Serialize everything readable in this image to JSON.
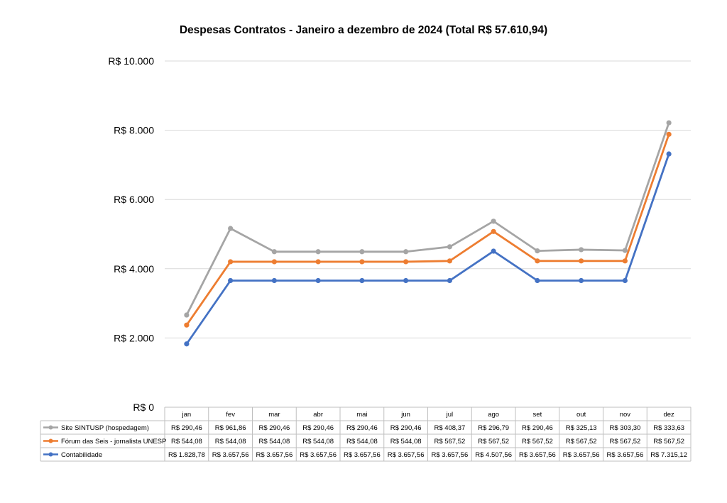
{
  "chart_data": {
    "type": "line",
    "title": "Despesas Contratos - Janeiro a dezembro de 2024 (Total R$ 57.610,94)",
    "stacked": true,
    "xlabel": "",
    "ylabel": "",
    "ylim": [
      0,
      10000
    ],
    "yticks": [
      0,
      2000,
      4000,
      6000,
      8000,
      10000
    ],
    "ytick_labels": [
      "R$ 0",
      "R$ 2.000",
      "R$ 4.000",
      "R$ 6.000",
      "R$ 8.000",
      "R$ 10.000"
    ],
    "grid": true,
    "legend_placement": "data table below chart",
    "categories": [
      "jan",
      "fev",
      "mar",
      "abr",
      "mai",
      "jun",
      "jul",
      "ago",
      "set",
      "out",
      "nov",
      "dez"
    ],
    "series": [
      {
        "name": "Site SINTUSP (hospedagem)",
        "color": "#A5A5A5",
        "values": [
          290.46,
          961.86,
          290.46,
          290.46,
          290.46,
          290.46,
          408.37,
          296.79,
          290.46,
          325.13,
          303.3,
          333.63
        ],
        "labels": [
          "R$ 290,46",
          "R$ 961,86",
          "R$ 290,46",
          "R$ 290,46",
          "R$ 290,46",
          "R$ 290,46",
          "R$ 408,37",
          "R$ 296,79",
          "R$ 290,46",
          "R$ 325,13",
          "R$ 303,30",
          "R$ 333,63"
        ]
      },
      {
        "name": "Fórum das Seis - jornalista UNESP",
        "color": "#ED7D31",
        "values": [
          544.08,
          544.08,
          544.08,
          544.08,
          544.08,
          544.08,
          567.52,
          567.52,
          567.52,
          567.52,
          567.52,
          567.52
        ],
        "labels": [
          "R$ 544,08",
          "R$ 544,08",
          "R$ 544,08",
          "R$ 544,08",
          "R$ 544,08",
          "R$ 544,08",
          "R$ 567,52",
          "R$ 567,52",
          "R$ 567,52",
          "R$ 567,52",
          "R$ 567,52",
          "R$ 567,52"
        ]
      },
      {
        "name": "Contabilidade",
        "color": "#4472C4",
        "values": [
          1828.78,
          3657.56,
          3657.56,
          3657.56,
          3657.56,
          3657.56,
          3657.56,
          4507.56,
          3657.56,
          3657.56,
          3657.56,
          7315.12
        ],
        "labels": [
          "R$ 1.828,78",
          "R$ 3.657,56",
          "R$ 3.657,56",
          "R$ 3.657,56",
          "R$ 3.657,56",
          "R$ 3.657,56",
          "R$ 3.657,56",
          "R$ 4.507,56",
          "R$ 3.657,56",
          "R$ 3.657,56",
          "R$ 3.657,56",
          "R$ 7.315,12"
        ]
      }
    ],
    "stack_order_bottom_to_top": [
      "Contabilidade",
      "Fórum das Seis - jornalista UNESP",
      "Site SINTUSP (hospedagem)"
    ]
  }
}
